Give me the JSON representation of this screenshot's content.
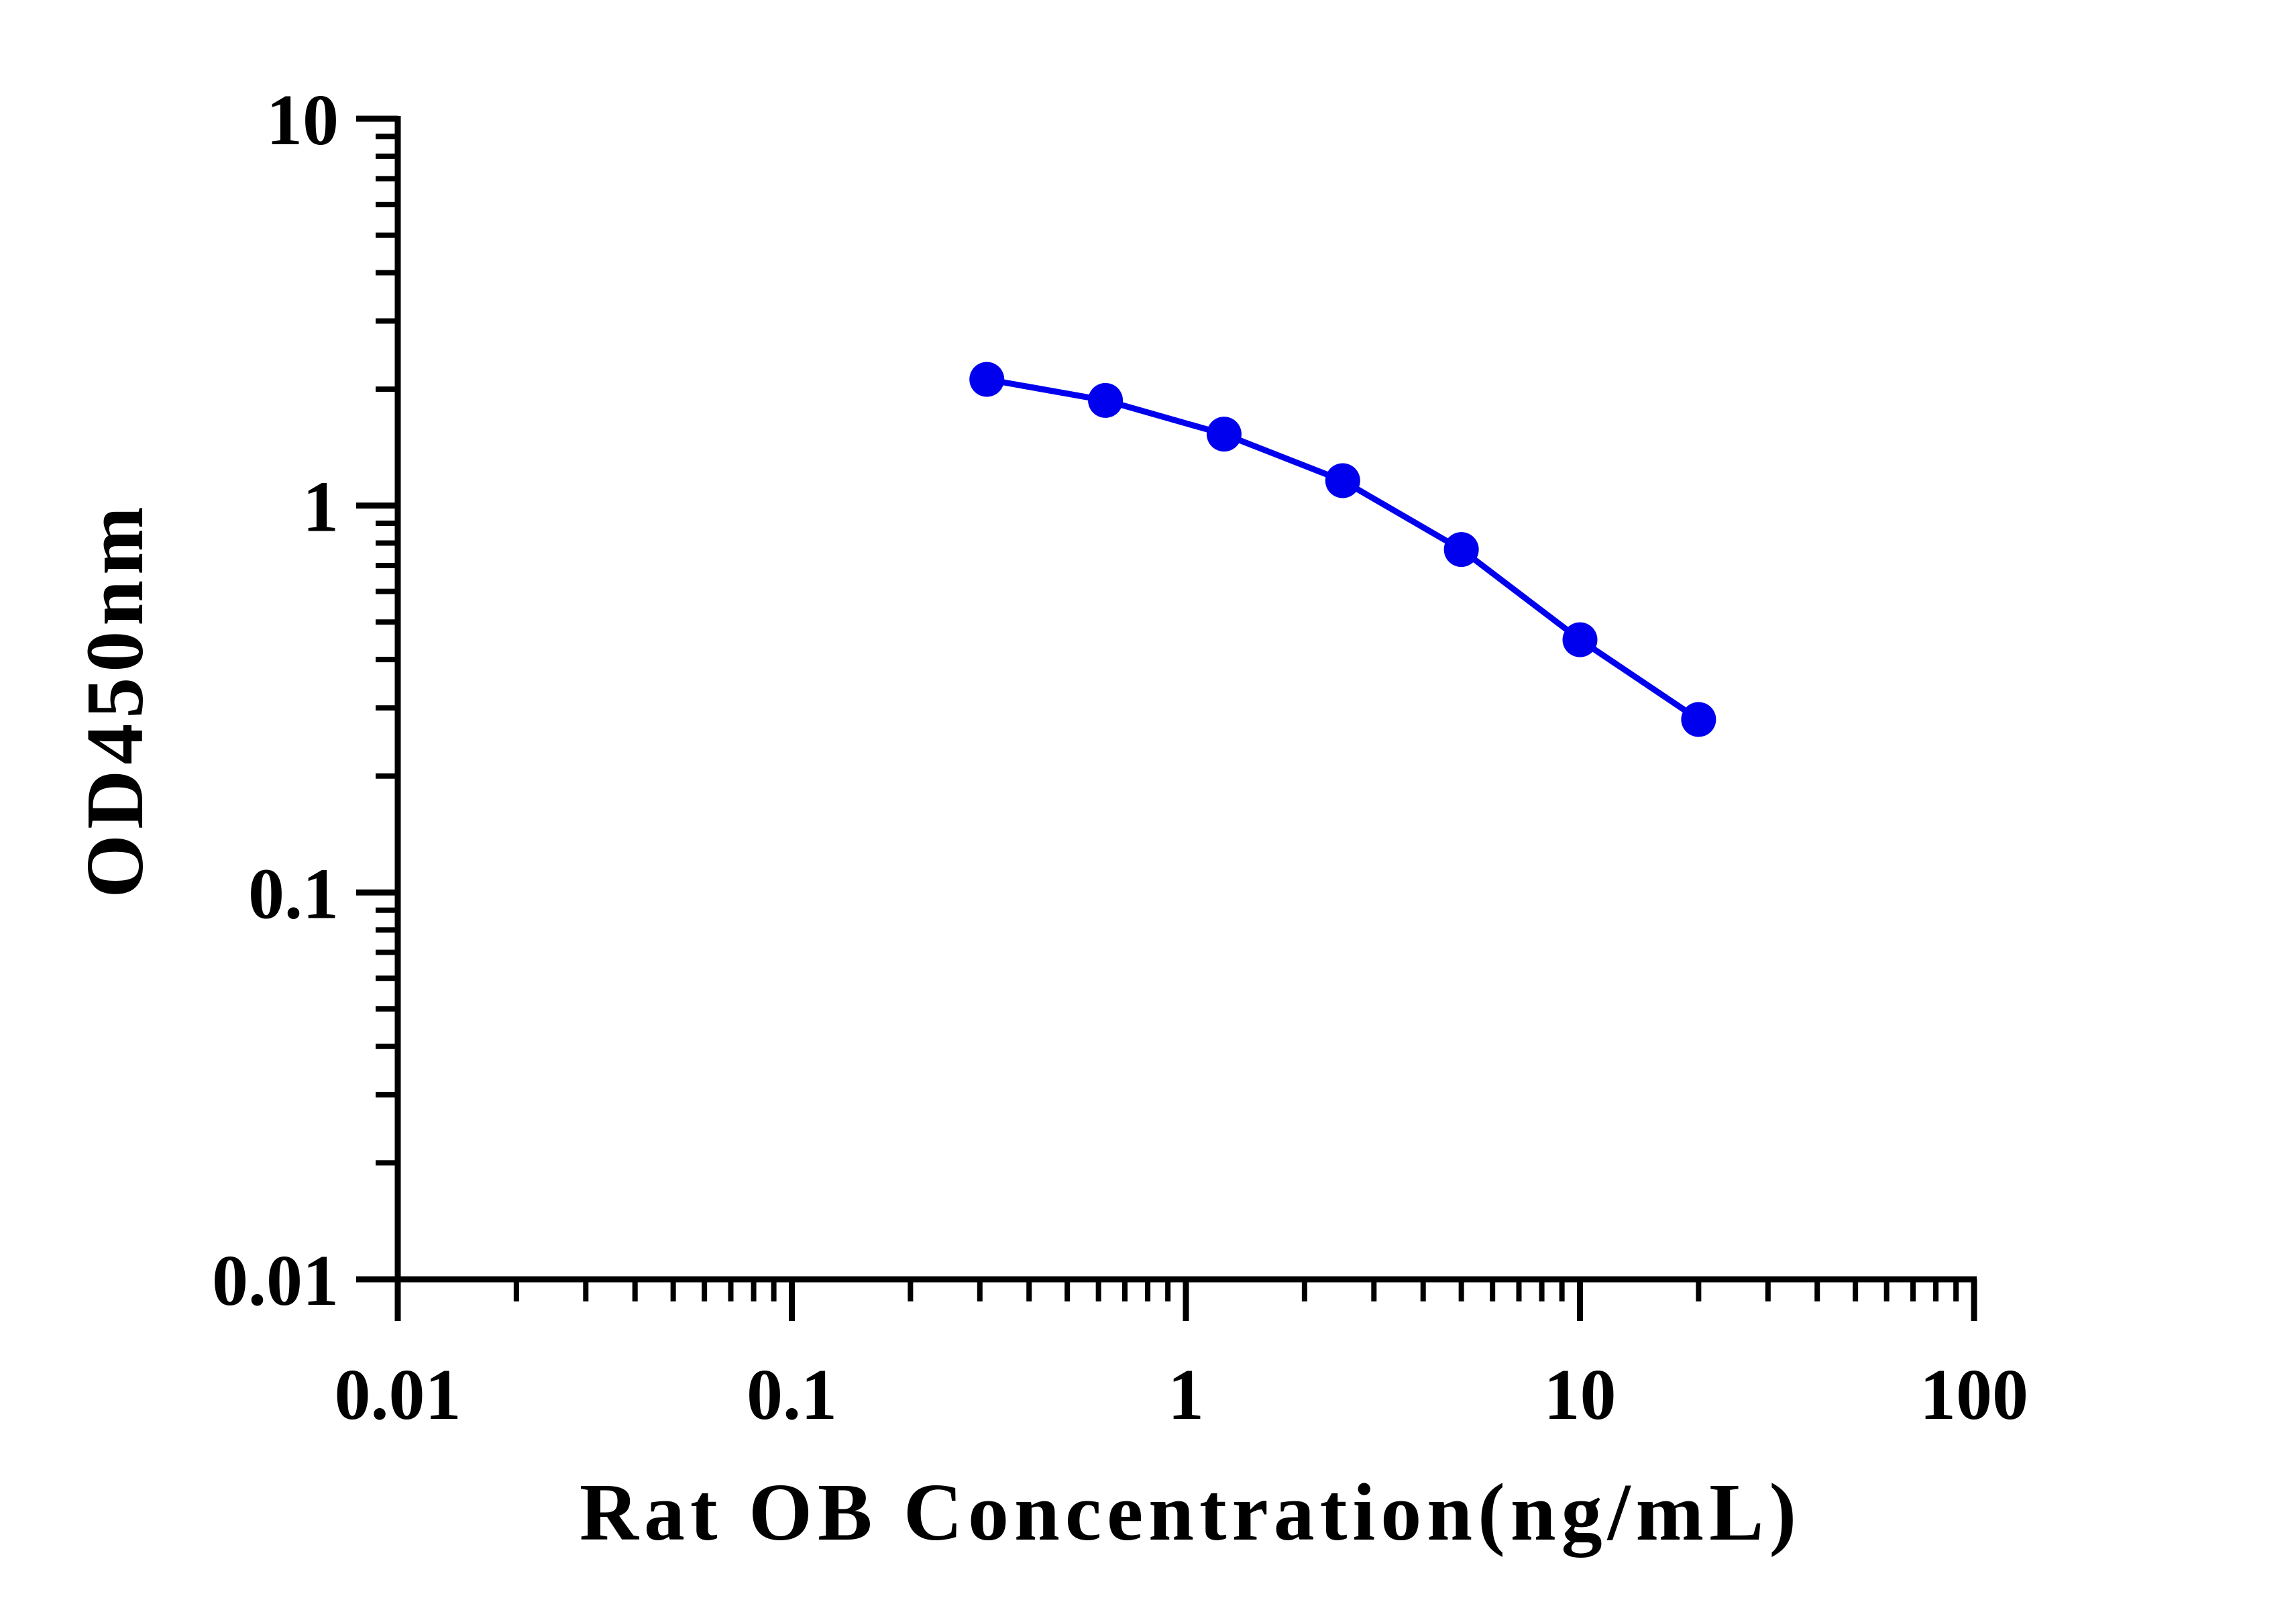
{
  "chart_data": {
    "type": "line",
    "title": "",
    "xlabel": "Rat OB Concentration(ng/mL)",
    "ylabel": "OD450nm",
    "x_scale": "log",
    "y_scale": "log",
    "xlim": [
      0.01,
      100
    ],
    "ylim": [
      0.01,
      10
    ],
    "x_ticks": [
      "0.01",
      "0.1",
      "1",
      "10",
      "100"
    ],
    "y_ticks": [
      "0.01",
      "0.1",
      "1",
      "10"
    ],
    "grid": false,
    "legend": "none",
    "series": [
      {
        "color": "#0000ee",
        "x": [
          0.3125,
          0.625,
          1.25,
          2.5,
          5,
          10,
          20
        ],
        "y": [
          2.12,
          1.87,
          1.53,
          1.16,
          0.77,
          0.45,
          0.28
        ]
      }
    ]
  }
}
